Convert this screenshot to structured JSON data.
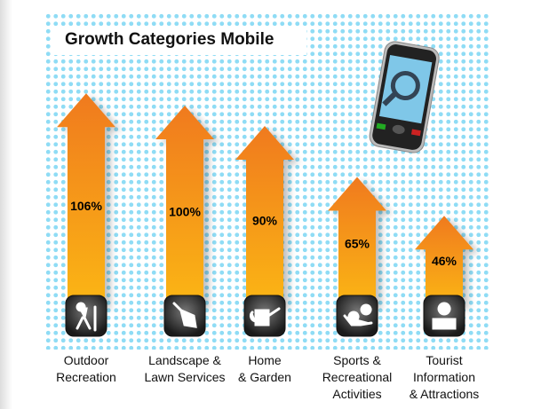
{
  "chart_data": {
    "type": "bar",
    "title": "Growth Categories Mobile",
    "categories": [
      "Outdoor\nRecreation",
      "Landscape &\nLawn Services",
      "Home\n& Garden",
      "Sports &\nRecreational\nActivities",
      "Tourist\nInformation\n& Attractions"
    ],
    "values": [
      106,
      100,
      90,
      65,
      46
    ],
    "value_labels": [
      "106%",
      "100%",
      "90%",
      "65%",
      "46%"
    ],
    "icons": [
      "hiker-icon",
      "trowel-icon",
      "watering-can-icon",
      "sports-ball-icon",
      "tourist-camera-icon"
    ],
    "mark_style": "upward arrows",
    "colors": {
      "arrow_top": "#f07a1e",
      "arrow_bottom": "#fbb614",
      "background_dots": "#8fdcf5",
      "icon_bg": "#333333"
    }
  }
}
